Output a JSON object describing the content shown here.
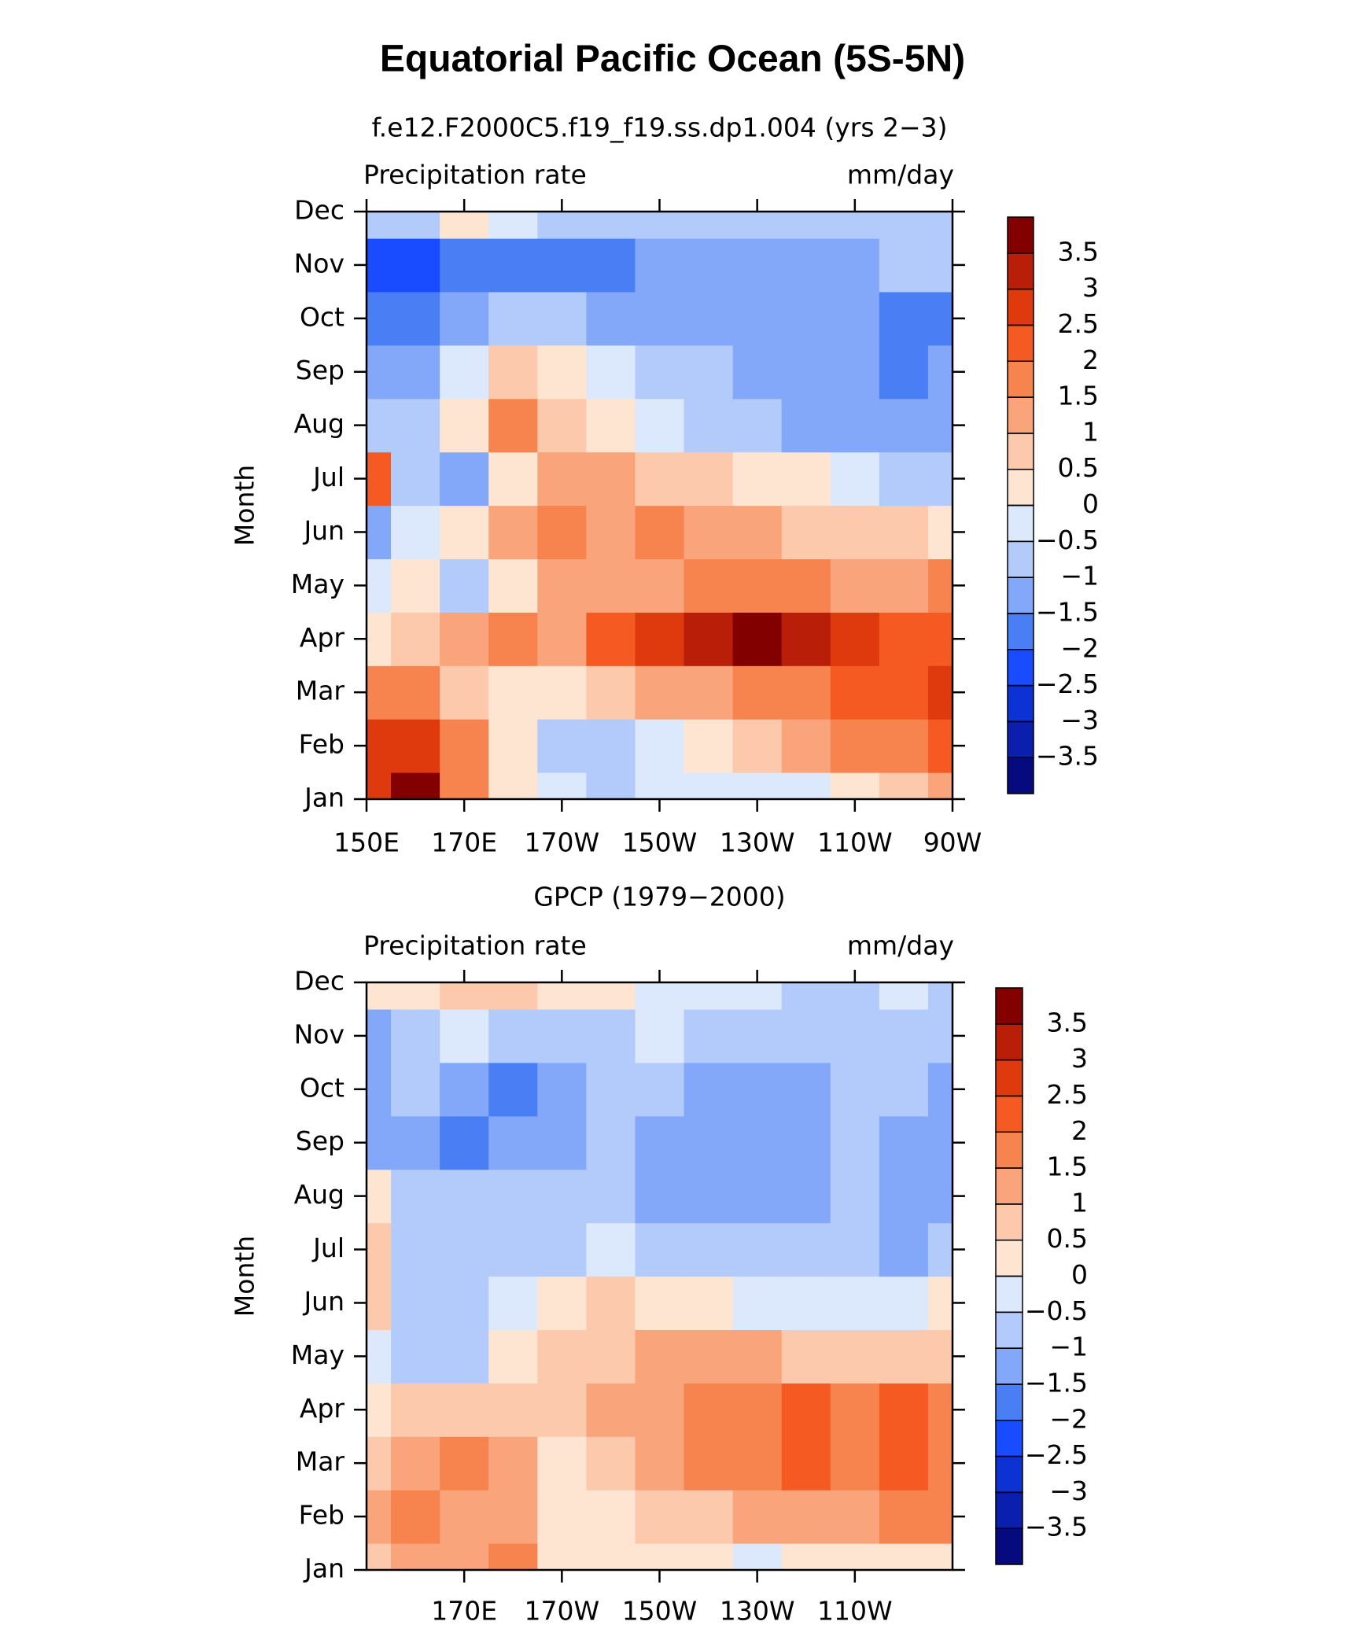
{
  "title": "Equatorial Pacific Ocean (5S-5N)",
  "chart_data": [
    {
      "type": "contour",
      "title": "f.e12.F2000C5.f19_f19.ss.dp1.004 (yrs 2−3)",
      "left_label": "Precipitation rate",
      "right_label": "mm/day",
      "ylabel": "Month",
      "categories": [
        "Jan",
        "Feb",
        "Mar",
        "Apr",
        "May",
        "Jun",
        "Jul",
        "Aug",
        "Sep",
        "Oct",
        "Nov",
        "Dec"
      ],
      "x": [
        150,
        160,
        170,
        180,
        190,
        200,
        210,
        220,
        230,
        240,
        250,
        260,
        270
      ],
      "xlim": [
        150,
        270
      ],
      "xticks": [
        {
          "value": 150,
          "label": "150E"
        },
        {
          "value": 170,
          "label": "170E"
        },
        {
          "value": 190,
          "label": "170W"
        },
        {
          "value": 210,
          "label": "150W"
        },
        {
          "value": 230,
          "label": "130W"
        },
        {
          "value": 250,
          "label": "110W"
        },
        {
          "value": 270,
          "label": "90W"
        }
      ],
      "values": [
        [
          2.5,
          3.7,
          1.5,
          0.3,
          -0.5,
          -1.0,
          -0.5,
          -0.5,
          -0.5,
          -0.2,
          0.3,
          0.7,
          1.2
        ],
        [
          2.5,
          2.8,
          1.5,
          0.2,
          -0.7,
          -0.6,
          -0.4,
          0.2,
          0.7,
          1.2,
          1.7,
          1.8,
          2.2
        ],
        [
          1.7,
          1.5,
          0.8,
          0.2,
          0.2,
          0.6,
          1.0,
          1.3,
          1.6,
          1.8,
          2.2,
          2.3,
          2.7
        ],
        [
          0.2,
          0.7,
          1.2,
          1.7,
          1.3,
          2.2,
          2.7,
          3.2,
          3.6,
          3.2,
          2.6,
          2.4,
          2.3
        ],
        [
          -0.3,
          0.2,
          -0.6,
          0.3,
          1.3,
          1.4,
          1.4,
          1.6,
          1.7,
          1.6,
          1.4,
          1.2,
          1.7
        ],
        [
          -1.2,
          -0.5,
          0.3,
          1.2,
          1.6,
          1.3,
          1.6,
          1.3,
          1.1,
          0.9,
          0.8,
          0.7,
          0.2
        ],
        [
          2.0,
          -0.7,
          -1.2,
          0.3,
          1.3,
          1.1,
          0.9,
          0.7,
          0.4,
          0.2,
          -0.3,
          -0.6,
          -0.7
        ],
        [
          -0.6,
          -0.8,
          0.3,
          1.6,
          0.6,
          0.3,
          -0.4,
          -0.7,
          -0.9,
          -1.1,
          -1.1,
          -1.2,
          -1.2
        ],
        [
          -1.3,
          -1.1,
          -0.3,
          0.6,
          0.2,
          -0.5,
          -0.8,
          -0.9,
          -1.1,
          -1.2,
          -1.3,
          -1.7,
          -1.3
        ],
        [
          -1.7,
          -1.6,
          -1.2,
          -1.0,
          -0.9,
          -1.1,
          -1.2,
          -1.3,
          -1.3,
          -1.2,
          -1.3,
          -1.6,
          -1.8
        ],
        [
          -2.1,
          -2.2,
          -1.8,
          -1.6,
          -1.7,
          -1.8,
          -1.3,
          -1.2,
          -1.2,
          -1.2,
          -1.1,
          -1.0,
          -0.9
        ],
        [
          -0.8,
          -0.6,
          0.1,
          -0.4,
          -0.7,
          -0.8,
          -0.8,
          -0.8,
          -0.8,
          -0.7,
          -0.7,
          -0.6,
          -0.7
        ]
      ],
      "levels": [
        {
          "value": -3.5,
          "label": "−3.5"
        },
        {
          "value": -3,
          "label": "−3"
        },
        {
          "value": -2.5,
          "label": "−2.5"
        },
        {
          "value": -2,
          "label": "−2"
        },
        {
          "value": -1.5,
          "label": "−1.5"
        },
        {
          "value": -1,
          "label": "−1"
        },
        {
          "value": -0.5,
          "label": "−0.5"
        },
        0,
        0.5,
        1,
        1.5,
        2,
        2.5,
        3,
        3.5
      ],
      "colors": [
        "#050a7e",
        "#0a1fae",
        "#0c32d4",
        "#1a4cff",
        "#4a7ef5",
        "#83a8fa",
        "#b3cbfb",
        "#dce8fb",
        "#fde5d2",
        "#fcc9ad",
        "#faa47c",
        "#f7844e",
        "#f55a22",
        "#df3a0e",
        "#b81e08",
        "#820000"
      ]
    },
    {
      "type": "contour",
      "title": "GPCP (1979−2000)",
      "left_label": "Precipitation rate",
      "right_label": "mm/day",
      "ylabel": "Month",
      "categories": [
        "Jan",
        "Feb",
        "Mar",
        "Apr",
        "May",
        "Jun",
        "Jul",
        "Aug",
        "Sep",
        "Oct",
        "Nov",
        "Dec"
      ],
      "x": [
        150,
        160,
        170,
        180,
        190,
        200,
        210,
        220,
        230,
        240,
        250,
        260,
        270
      ],
      "xlim": [
        150,
        270
      ],
      "xticks": [
        {
          "value": 170,
          "label": "170E"
        },
        {
          "value": 190,
          "label": "170W"
        },
        {
          "value": 210,
          "label": "150W"
        },
        {
          "value": 230,
          "label": "130W"
        },
        {
          "value": 250,
          "label": "110W"
        }
      ],
      "values": [
        [
          0.6,
          1.0,
          1.3,
          1.6,
          0.4,
          0.3,
          0.2,
          0.1,
          -0.3,
          0.1,
          0.3,
          0.4,
          0.3
        ],
        [
          1.0,
          1.6,
          1.3,
          1.2,
          0.3,
          0.4,
          0.6,
          0.9,
          1.2,
          1.4,
          1.4,
          1.6,
          1.7
        ],
        [
          0.6,
          1.3,
          1.6,
          1.2,
          0.4,
          0.8,
          1.3,
          1.7,
          1.9,
          2.2,
          1.8,
          2.3,
          1.9
        ],
        [
          0.3,
          0.7,
          0.9,
          0.8,
          0.6,
          1.1,
          1.3,
          1.8,
          1.9,
          2.1,
          1.8,
          2.1,
          1.6
        ],
        [
          -0.3,
          -0.6,
          -0.9,
          0.2,
          0.6,
          0.8,
          1.0,
          1.1,
          1.1,
          0.9,
          0.8,
          0.6,
          0.7
        ],
        [
          0.6,
          -0.7,
          -0.8,
          -0.3,
          0.2,
          0.5,
          0.4,
          0.2,
          -0.2,
          -0.3,
          -0.2,
          -0.1,
          0.1
        ],
        [
          0.7,
          -0.8,
          -0.8,
          -0.7,
          -0.6,
          -0.5,
          -0.7,
          -0.8,
          -0.8,
          -0.9,
          -0.8,
          -1.2,
          -0.9
        ],
        [
          0.2,
          -0.8,
          -0.8,
          -0.9,
          -0.8,
          -0.9,
          -1.1,
          -1.3,
          -1.2,
          -1.1,
          -0.9,
          -1.3,
          -1.2
        ],
        [
          -1.3,
          -1.2,
          -1.6,
          -1.5,
          -1.1,
          -1.0,
          -1.2,
          -1.3,
          -1.3,
          -1.2,
          -0.9,
          -1.1,
          -1.3
        ],
        [
          -1.1,
          -1.0,
          -1.2,
          -1.6,
          -1.1,
          -0.9,
          -1.0,
          -1.1,
          -1.1,
          -1.1,
          -0.9,
          -0.9,
          -1.2
        ],
        [
          -1.1,
          -0.8,
          -0.5,
          -0.6,
          -0.7,
          -0.6,
          -0.5,
          -0.6,
          -0.8,
          -0.9,
          -0.8,
          -0.8,
          -0.7
        ],
        [
          0.2,
          0.4,
          0.9,
          0.6,
          0.4,
          0.2,
          -0.3,
          -0.4,
          -0.5,
          -0.6,
          -0.6,
          -0.5,
          -0.6
        ]
      ],
      "levels": [
        {
          "value": -3.5,
          "label": "−3.5"
        },
        {
          "value": -3,
          "label": "−3"
        },
        {
          "value": -2.5,
          "label": "−2.5"
        },
        {
          "value": -2,
          "label": "−2"
        },
        {
          "value": -1.5,
          "label": "−1.5"
        },
        {
          "value": -1,
          "label": "−1"
        },
        {
          "value": -0.5,
          "label": "−0.5"
        },
        0,
        0.5,
        1,
        1.5,
        2,
        2.5,
        3,
        3.5
      ],
      "colors": [
        "#050a7e",
        "#0a1fae",
        "#0c32d4",
        "#1a4cff",
        "#4a7ef5",
        "#83a8fa",
        "#b3cbfb",
        "#dce8fb",
        "#fde5d2",
        "#fcc9ad",
        "#faa47c",
        "#f7844e",
        "#f55a22",
        "#df3a0e",
        "#b81e08",
        "#820000"
      ]
    }
  ]
}
